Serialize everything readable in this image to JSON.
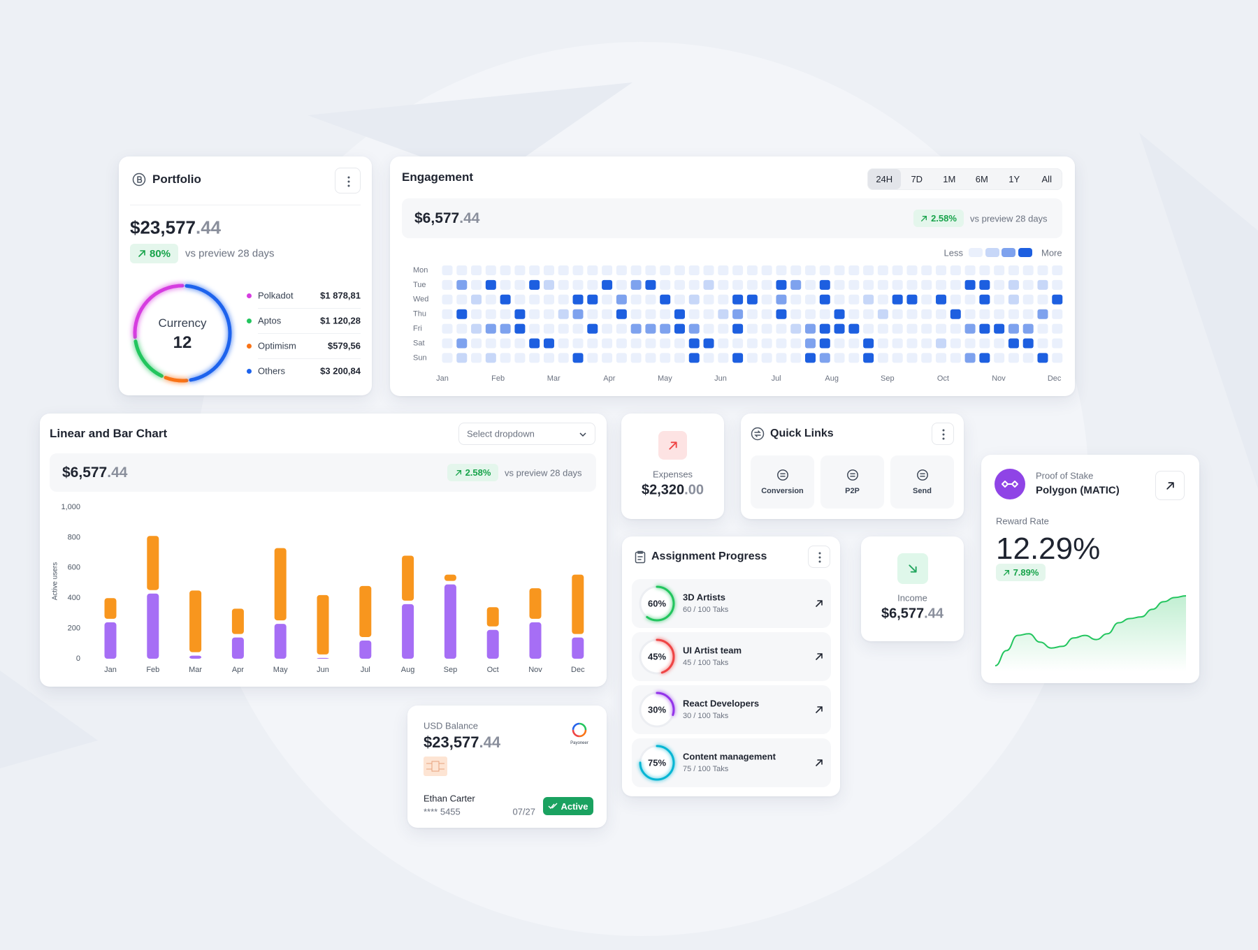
{
  "portfolio": {
    "title": "Portfolio",
    "amount_main": "$23,577",
    "amount_cents": ".44",
    "change": "80%",
    "change_note": "vs preview 28 days",
    "donut_label": "Currency",
    "donut_value": 12,
    "chart": {
      "type": "pie",
      "series": [
        {
          "name": "Polkadot",
          "color": "#d63de0",
          "value": 1878.81,
          "value_label": "$1 878,81"
        },
        {
          "name": "Aptos",
          "color": "#22c55e",
          "value": 1120.28,
          "value_label": "$1 120,28"
        },
        {
          "name": "Optimism",
          "color": "#f97316",
          "value": 579.56,
          "value_label": "$579,56"
        },
        {
          "name": "Others",
          "color": "#1d63ed",
          "value": 3200.84,
          "value_label": "$3 200,84"
        }
      ]
    }
  },
  "engagement": {
    "title": "Engagement",
    "tabs": [
      "24H",
      "7D",
      "1M",
      "6M",
      "1Y",
      "All"
    ],
    "active_tab": 0,
    "amount_main": "$6,577",
    "amount_cents": ".44",
    "change": "2.58%",
    "change_note": "vs preview 28 days",
    "heatmap": {
      "type": "heatmap",
      "legend_less": "Less",
      "legend_more": "More",
      "colors": [
        "#eaf0fc",
        "#c7d7f8",
        "#7ea2ee",
        "#1d5fe0"
      ],
      "row_labels": [
        "Mon",
        "Tue",
        "Wed",
        "Thu",
        "Fri",
        "Sat",
        "Sun"
      ],
      "months": [
        "Jan",
        "Feb",
        "Mar",
        "Apr",
        "May",
        "Jun",
        "Jul",
        "Aug",
        "Sep",
        "Oct",
        "Nov",
        "Dec"
      ],
      "levels": [
        [
          0,
          0,
          0,
          0,
          0,
          0,
          0,
          0,
          0,
          0,
          0,
          0,
          0,
          0,
          0,
          0,
          0,
          0,
          0,
          0,
          0,
          0,
          0,
          0,
          0,
          0,
          0,
          0,
          0,
          0,
          0,
          0,
          0,
          0,
          0,
          0,
          0,
          0,
          0,
          0,
          0,
          0,
          0
        ],
        [
          0,
          2,
          0,
          3,
          0,
          0,
          3,
          1,
          0,
          0,
          0,
          3,
          0,
          2,
          3,
          0,
          0,
          0,
          1,
          0,
          0,
          0,
          0,
          3,
          2,
          0,
          3,
          0,
          0,
          0,
          0,
          0,
          0,
          0,
          0,
          0,
          3,
          3,
          0,
          1,
          0,
          1,
          0
        ],
        [
          0,
          0,
          1,
          0,
          3,
          0,
          0,
          0,
          0,
          3,
          3,
          0,
          2,
          0,
          0,
          3,
          0,
          1,
          0,
          0,
          3,
          3,
          0,
          2,
          0,
          0,
          3,
          0,
          0,
          1,
          0,
          3,
          3,
          0,
          3,
          0,
          0,
          3,
          0,
          1,
          0,
          0,
          3
        ],
        [
          0,
          3,
          0,
          0,
          0,
          3,
          0,
          0,
          1,
          2,
          0,
          0,
          3,
          0,
          0,
          0,
          3,
          0,
          0,
          1,
          2,
          0,
          0,
          3,
          0,
          0,
          0,
          3,
          0,
          0,
          1,
          0,
          0,
          0,
          0,
          3,
          0,
          0,
          0,
          0,
          0,
          2,
          0
        ],
        [
          0,
          0,
          1,
          2,
          2,
          3,
          0,
          0,
          0,
          0,
          3,
          0,
          0,
          2,
          2,
          2,
          3,
          2,
          0,
          0,
          3,
          0,
          0,
          0,
          1,
          2,
          3,
          3,
          3,
          0,
          0,
          0,
          0,
          0,
          0,
          0,
          2,
          3,
          3,
          2,
          2,
          0,
          0
        ],
        [
          0,
          2,
          0,
          0,
          0,
          0,
          3,
          3,
          0,
          0,
          0,
          0,
          0,
          0,
          0,
          0,
          0,
          3,
          3,
          0,
          0,
          0,
          0,
          0,
          0,
          2,
          3,
          0,
          0,
          3,
          0,
          0,
          0,
          0,
          1,
          0,
          0,
          0,
          0,
          3,
          3,
          0,
          0
        ],
        [
          0,
          1,
          0,
          1,
          0,
          0,
          0,
          0,
          0,
          3,
          0,
          0,
          0,
          0,
          0,
          0,
          0,
          3,
          0,
          0,
          3,
          0,
          0,
          0,
          0,
          3,
          2,
          0,
          0,
          3,
          0,
          0,
          0,
          0,
          0,
          0,
          2,
          3,
          0,
          0,
          0,
          3,
          0
        ]
      ]
    }
  },
  "linear": {
    "title": "Linear and Bar Chart",
    "dropdown": "Select dropdown",
    "amount_main": "$6,577",
    "amount_cents": ".44",
    "change": "2.58%",
    "change_note": "vs preview 28 days",
    "chart": {
      "type": "bar",
      "stacked": true,
      "grid": false,
      "ylabel": "Active users",
      "categories": [
        "Jan",
        "Feb",
        "Mar",
        "Apr",
        "May",
        "Jun",
        "Jul",
        "Aug",
        "Sep",
        "Oct",
        "Nov",
        "Dec"
      ],
      "ylim": [
        0,
        1000
      ],
      "yticks": [
        0,
        200,
        400,
        600,
        800,
        {
          "value": 1000,
          "label": "1,000"
        }
      ],
      "series": [
        {
          "color": "#a66ef5",
          "values": [
            240,
            430,
            20,
            140,
            230,
            5,
            120,
            360,
            490,
            190,
            240,
            140
          ]
        },
        {
          "color": "#f8961e",
          "values": [
            160,
            380,
            430,
            190,
            500,
            415,
            360,
            320,
            65,
            150,
            225,
            415
          ]
        }
      ]
    }
  },
  "expenses": {
    "label": "Expenses",
    "amount_main": "$2,320",
    "amount_cents": ".00"
  },
  "quick_links": {
    "title": "Quick Links",
    "links": [
      "Conversion",
      "P2P",
      "Send"
    ]
  },
  "assignment": {
    "title": "Assignment Progress",
    "items": [
      {
        "percent": 60,
        "percent_label": "60%",
        "color": "#22c55e",
        "title": "3D Artists",
        "subtitle": "60 / 100 Taks"
      },
      {
        "percent": 45,
        "percent_label": "45%",
        "color": "#ef4444",
        "title": "UI Artist team",
        "subtitle": "45 / 100 Taks"
      },
      {
        "percent": 30,
        "percent_label": "30%",
        "color": "#9333ea",
        "title": "React Developers",
        "subtitle": "30 / 100 Taks"
      },
      {
        "percent": 75,
        "percent_label": "75%",
        "color": "#06b6d4",
        "title": "Content management",
        "subtitle": "75 / 100 Taks"
      }
    ]
  },
  "income": {
    "label": "Income",
    "amount_main": "$6,577",
    "amount_cents": ".44"
  },
  "stake": {
    "label": "Proof of Stake",
    "name": "Polygon (MATIC)",
    "rate_label": "Reward Rate",
    "rate": "12.29%",
    "change": "7.89%",
    "sparkline": {
      "type": "line",
      "color": "#22c55e",
      "values": [
        7,
        25,
        43,
        45,
        35,
        28,
        30,
        40,
        43,
        38,
        45,
        58,
        63,
        65,
        74,
        83,
        88,
        90
      ]
    }
  },
  "usd": {
    "label": "USD Balance",
    "amount_main": "$23,577",
    "amount_cents": ".44",
    "logo": "Payoneer",
    "holder": "Ethan Carter",
    "card_number": "**** 5455",
    "expiry": "07/27",
    "status": "Active"
  }
}
